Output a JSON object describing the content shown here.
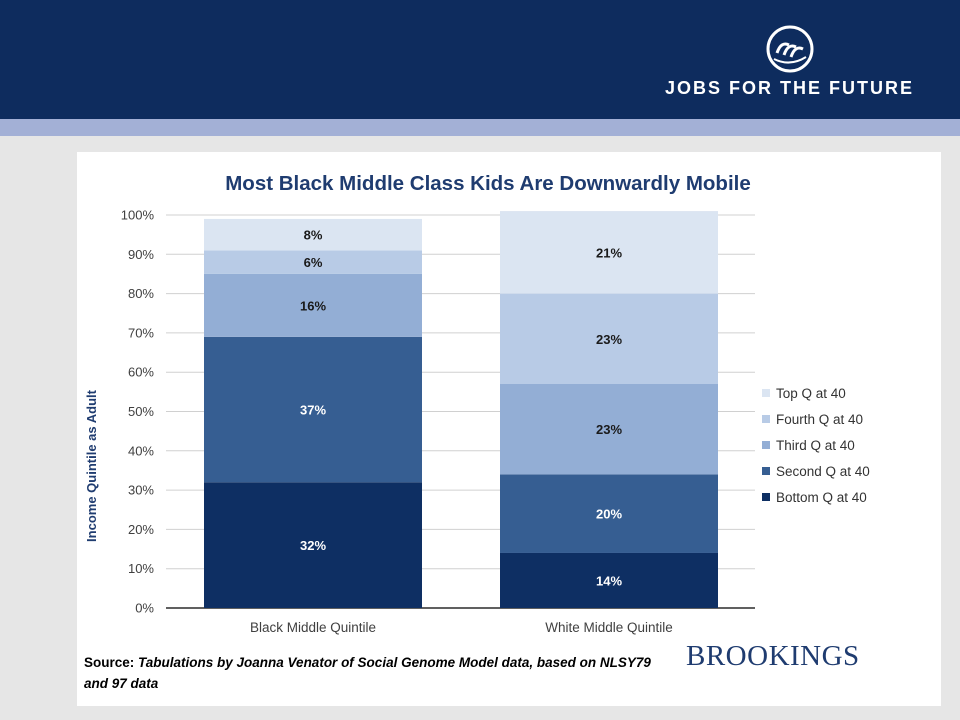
{
  "header": {
    "org_name": "JOBS FOR THE FUTURE"
  },
  "footer": {
    "source_label": "Source:",
    "source_text": "Tabulations by Joanna Venator of Social Genome Model data, based on NLSY79 and 97 data",
    "publisher": "BROOKINGS"
  },
  "chart_data": {
    "type": "bar",
    "stacked": true,
    "title": "Most Black Middle Class Kids Are Downwardly Mobile",
    "xlabel": "",
    "ylabel": "Income Quintile as Adult",
    "ylim": [
      0,
      100
    ],
    "yticks": [
      "0%",
      "10%",
      "20%",
      "30%",
      "40%",
      "50%",
      "60%",
      "70%",
      "80%",
      "90%",
      "100%"
    ],
    "categories": [
      "Black Middle Quintile",
      "White Middle Quintile"
    ],
    "series": [
      {
        "name": "Bottom Q at 40",
        "values": [
          32,
          14
        ],
        "labels": [
          "32%",
          "14%"
        ],
        "color": "#0e2f63"
      },
      {
        "name": "Second Q at 40",
        "values": [
          37,
          20
        ],
        "labels": [
          "37%",
          "20%"
        ],
        "color": "#365e92"
      },
      {
        "name": "Third Q at 40",
        "values": [
          16,
          23
        ],
        "labels": [
          "16%",
          "23%"
        ],
        "color": "#93aed5"
      },
      {
        "name": "Fourth Q at 40",
        "values": [
          6,
          23
        ],
        "labels": [
          "6%",
          "23%"
        ],
        "color": "#b8cbe6"
      },
      {
        "name": "Top Q at 40",
        "values": [
          8,
          21
        ],
        "labels": [
          "8%",
          "21%"
        ],
        "color": "#dbe5f2"
      }
    ],
    "legend_position": "right",
    "grid": true,
    "title_color": "#1f3c70",
    "ylabel_color": "#1f3c70"
  }
}
